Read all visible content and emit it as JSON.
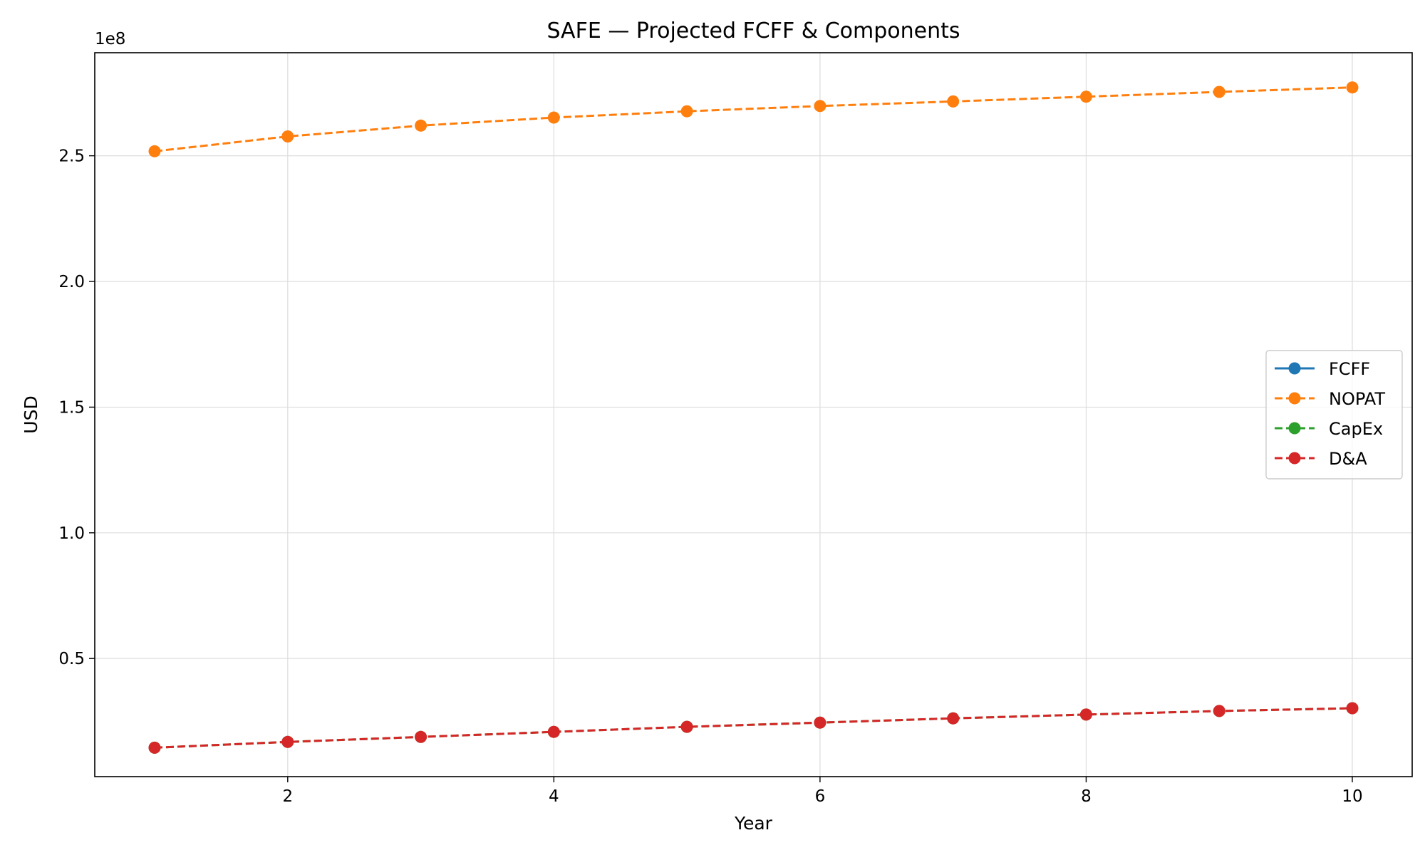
{
  "chart_data": {
    "type": "line",
    "title": "SAFE — Projected FCFF & Components",
    "xlabel": "Year",
    "ylabel": "USD",
    "y_offset_label": "1e8",
    "x": [
      1,
      2,
      3,
      4,
      5,
      6,
      7,
      8,
      9,
      10
    ],
    "xlim": [
      0.55,
      10.45
    ],
    "ylim": [
      0.03,
      2.91
    ],
    "x_ticks": [
      2,
      4,
      6,
      8,
      10
    ],
    "x_tick_labels": [
      "2",
      "4",
      "6",
      "8",
      "10"
    ],
    "y_ticks": [
      0.5,
      1.0,
      1.5,
      2.0,
      2.5
    ],
    "y_tick_labels": [
      "0.5",
      "1.0",
      "1.5",
      "2.0",
      "2.5"
    ],
    "grid": true,
    "legend_position": "center-right",
    "series": [
      {
        "name": "FCFF",
        "color": "#1f77b4",
        "dash": "solid",
        "values": [
          null,
          null,
          null,
          null,
          null,
          null,
          null,
          null,
          null,
          null
        ]
      },
      {
        "name": "NOPAT",
        "color": "#ff7f0e",
        "dash": "dashed",
        "values": [
          2.518,
          2.577,
          2.62,
          2.652,
          2.677,
          2.698,
          2.716,
          2.735,
          2.754,
          2.772
        ]
      },
      {
        "name": "CapEx",
        "color": "#2ca02c",
        "dash": "dashed",
        "values": [
          0.145,
          0.168,
          0.188,
          0.208,
          0.228,
          0.245,
          0.262,
          0.277,
          0.291,
          0.302
        ]
      },
      {
        "name": "D&A",
        "color": "#d62728",
        "dash": "dashed",
        "values": [
          0.145,
          0.168,
          0.188,
          0.208,
          0.228,
          0.245,
          0.262,
          0.277,
          0.291,
          0.302
        ]
      }
    ]
  }
}
